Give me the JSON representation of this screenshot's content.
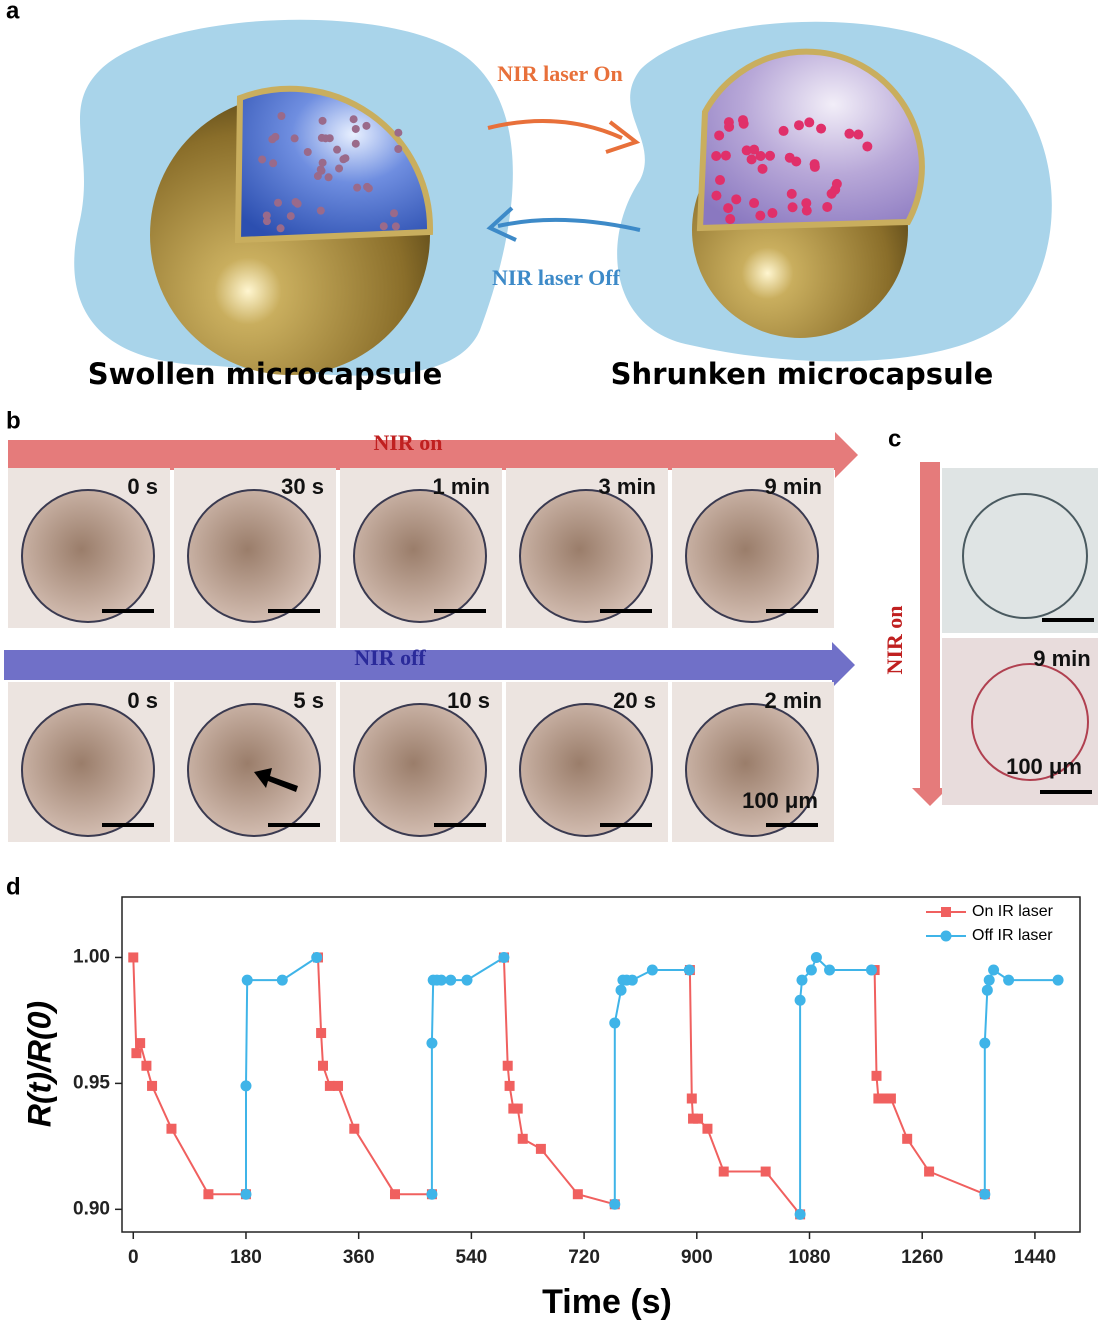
{
  "panel_a": {
    "label": "a",
    "arrow_on": "NIR laser On",
    "arrow_off": "NIR laser Off",
    "left_caption": "Swollen microcapsule",
    "right_caption": "Shrunken microcapsule"
  },
  "panel_b": {
    "label": "b",
    "on_arrow": "NIR on",
    "on_times": [
      "0 s",
      "30 s",
      "1 min",
      "3 min",
      "9 min"
    ],
    "off_arrow": "NIR off",
    "off_times": [
      "0 s",
      "5 s",
      "10 s",
      "20 s",
      "2 min"
    ],
    "scale_label": "100 μm"
  },
  "panel_c": {
    "label": "c",
    "arrow": "NIR on",
    "time": "9 min",
    "scale_label": "100 μm"
  },
  "chart_data": {
    "type": "line",
    "panel_label": "d",
    "x_label": "Time (s)",
    "y_label": "R(t)/R(0)",
    "xlim": [
      -18,
      1512
    ],
    "ylim": [
      0.891,
      1.024
    ],
    "xticks": [
      0,
      180,
      360,
      540,
      720,
      900,
      1080,
      1260,
      1440
    ],
    "yticks": [
      {
        "value": 0.9,
        "label": "0.90"
      },
      {
        "value": 0.95,
        "label": "0.95"
      },
      {
        "value": 1.0,
        "label": "1.00"
      }
    ],
    "legend": "upper right",
    "series": [
      {
        "name": "On IR laser",
        "color": "#f0605f",
        "marker": "square",
        "x": [
          0,
          5,
          11,
          21,
          30,
          61,
          120,
          180,
          null,
          295,
          300,
          303,
          314,
          327,
          353,
          418,
          477,
          null,
          592,
          598,
          601,
          607,
          614,
          622,
          651,
          710,
          769,
          null,
          889,
          892,
          894,
          902,
          917,
          943,
          1010,
          1065,
          null,
          1184,
          1187,
          1190,
          1198,
          1210,
          1236,
          1271,
          1360
        ],
        "values": [
          1.0,
          0.962,
          0.966,
          0.957,
          0.949,
          0.932,
          0.906,
          0.906,
          null,
          1.0,
          0.97,
          0.957,
          0.949,
          0.949,
          0.932,
          0.906,
          0.906,
          null,
          1.0,
          0.957,
          0.949,
          0.94,
          0.94,
          0.928,
          0.924,
          0.906,
          0.902,
          null,
          0.995,
          0.944,
          0.936,
          0.936,
          0.932,
          0.915,
          0.915,
          0.898,
          null,
          0.995,
          0.953,
          0.944,
          0.944,
          0.944,
          0.928,
          0.915,
          0.906
        ]
      },
      {
        "name": "Off IR laser",
        "color": "#3fb4e8",
        "marker": "circle",
        "x": [
          180,
          180,
          182,
          238,
          293,
          null,
          477,
          477,
          479,
          485,
          492,
          507,
          533,
          592,
          null,
          769,
          769,
          779,
          782,
          788,
          797,
          829,
          888,
          null,
          1065,
          1065,
          1068,
          1083,
          1091,
          1112,
          1179,
          null,
          1360,
          1360,
          1364,
          1367,
          1374,
          1398,
          1477
        ],
        "values": [
          0.906,
          0.949,
          0.991,
          0.991,
          1.0,
          null,
          0.906,
          0.966,
          0.991,
          0.991,
          0.991,
          0.991,
          0.991,
          1.0,
          null,
          0.902,
          0.974,
          0.987,
          0.991,
          0.991,
          0.991,
          0.995,
          0.995,
          null,
          0.898,
          0.983,
          0.991,
          0.995,
          1.0,
          0.995,
          0.995,
          null,
          0.906,
          0.966,
          0.987,
          0.991,
          0.995,
          0.991,
          0.991
        ]
      }
    ]
  }
}
